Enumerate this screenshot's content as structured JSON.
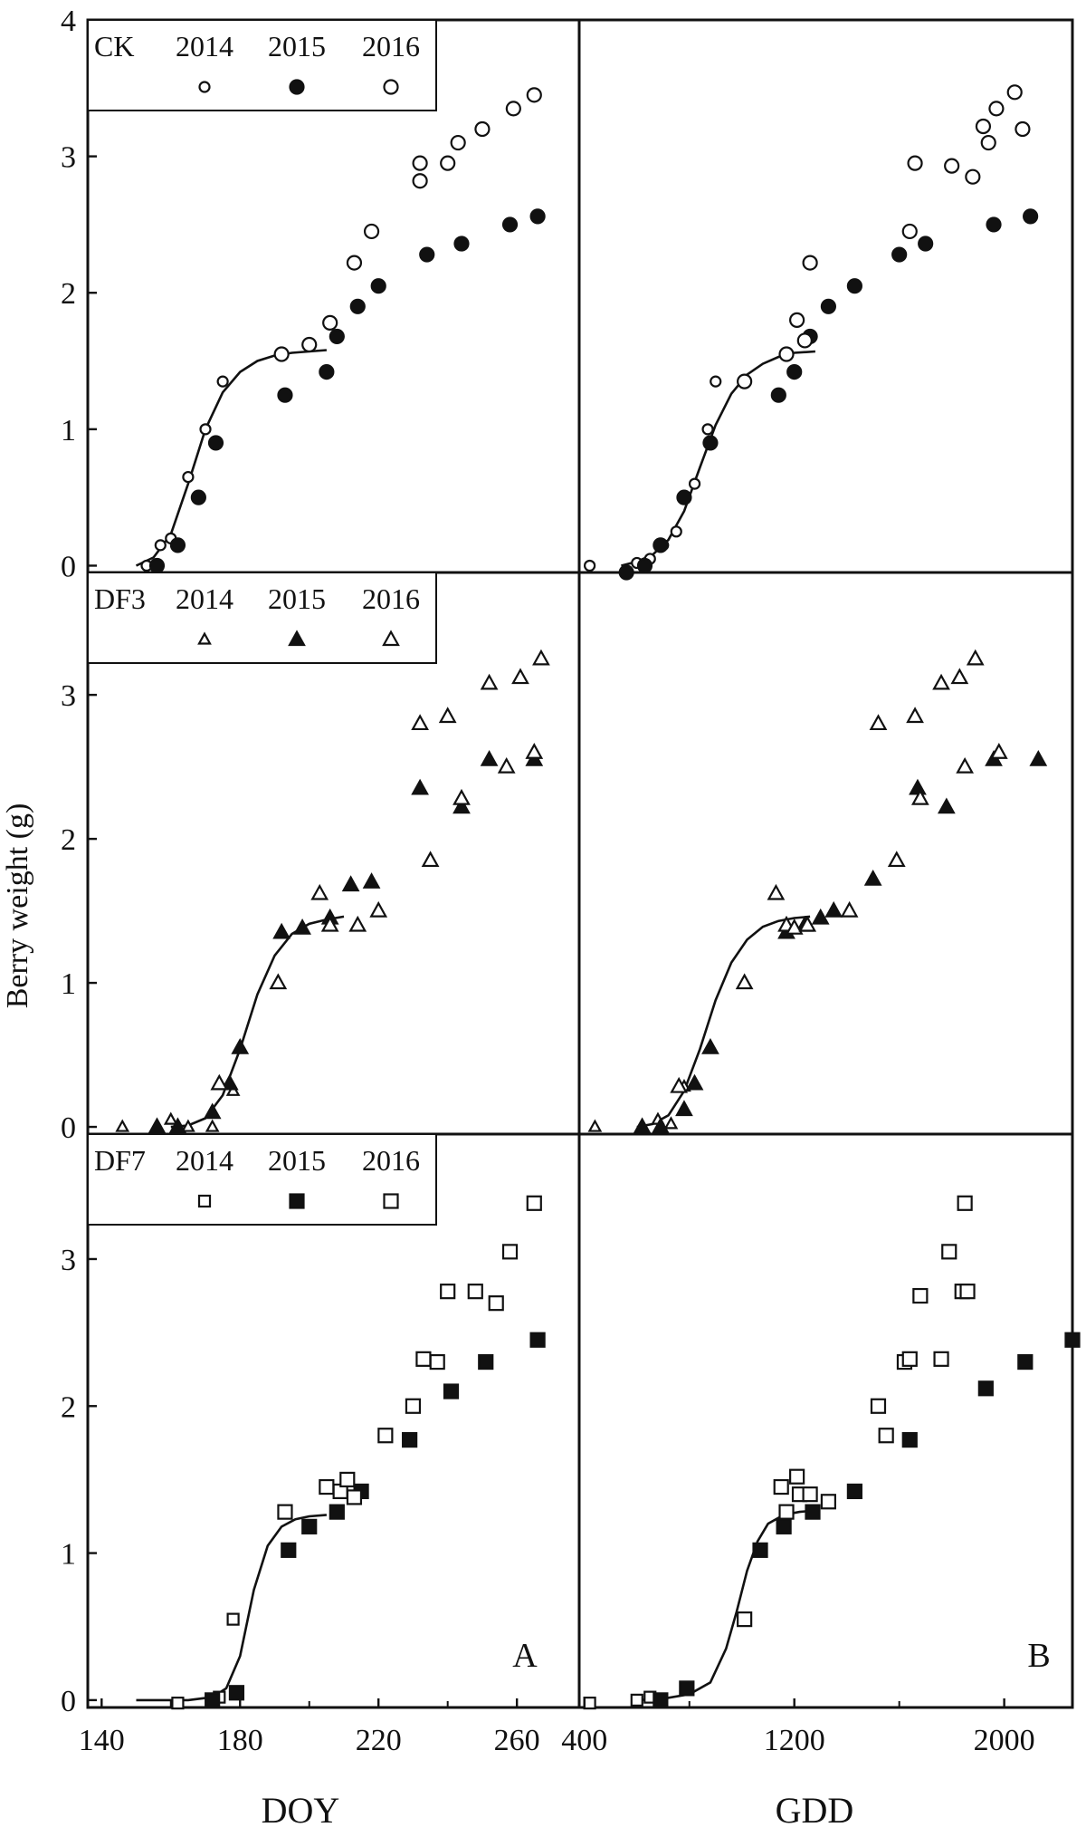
{
  "figure": {
    "ylabel": "Berry weight (g)",
    "panel_labels": [
      "A",
      "B"
    ],
    "columns": [
      {
        "xlabel": "DOY",
        "ticks": [
          140,
          180,
          220,
          260
        ],
        "xlim": [
          136,
          278
        ]
      },
      {
        "xlabel": "GDD",
        "ticks": [
          400,
          1200,
          2000
        ],
        "xlim": [
          380,
          2260
        ]
      }
    ],
    "rows": [
      {
        "treatment": "CK",
        "yticks": [
          0,
          1,
          2,
          3,
          4
        ],
        "ylim": [
          -0.05,
          4.0
        ]
      },
      {
        "treatment": "DF3",
        "yticks": [
          0,
          1,
          2,
          3
        ],
        "ylim": [
          -0.05,
          3.85
        ]
      },
      {
        "treatment": "DF7",
        "yticks": [
          0,
          1,
          2,
          3
        ],
        "ylim": [
          -0.05,
          3.85
        ]
      }
    ],
    "legend_years": [
      "2014",
      "2015",
      "2016"
    ]
  },
  "chart_data": [
    {
      "type": "scatter",
      "panel": "CK-DOY",
      "treatment": "CK",
      "xlabel": "DOY",
      "ylabel": "Berry weight (g)",
      "xlim": [
        136,
        278
      ],
      "ylim": [
        -0.05,
        4.0
      ],
      "legend": {
        "position": "top-left",
        "entries": [
          "CK",
          "2014",
          "2015",
          "2016"
        ]
      },
      "series": [
        {
          "name": "2014",
          "marker": "circle-open-small",
          "x": [
            153,
            157,
            160,
            165,
            170,
            175
          ],
          "y": [
            0.0,
            0.15,
            0.2,
            0.65,
            1.0,
            1.35
          ]
        },
        {
          "name": "2015",
          "marker": "circle-filled",
          "x": [
            156,
            162,
            168,
            173,
            193,
            205,
            208,
            214,
            220,
            234,
            244,
            258,
            266
          ],
          "y": [
            0.0,
            0.15,
            0.5,
            0.9,
            1.25,
            1.42,
            1.68,
            1.9,
            2.05,
            2.28,
            2.36,
            2.5,
            2.56
          ]
        },
        {
          "name": "2016",
          "marker": "circle-open",
          "x": [
            192,
            200,
            206,
            213,
            218,
            232,
            232,
            240,
            243,
            250,
            259,
            265
          ],
          "y": [
            1.55,
            1.62,
            1.78,
            2.22,
            2.45,
            2.82,
            2.95,
            2.95,
            3.1,
            3.2,
            3.35,
            3.45
          ]
        }
      ],
      "fit": {
        "x": [
          150,
          155,
          160,
          165,
          170,
          175,
          180,
          185,
          190,
          195,
          200,
          205
        ],
        "y": [
          0.0,
          0.06,
          0.23,
          0.6,
          1.0,
          1.27,
          1.42,
          1.5,
          1.54,
          1.56,
          1.57,
          1.58
        ]
      }
    },
    {
      "type": "scatter",
      "panel": "CK-GDD",
      "treatment": "CK",
      "xlabel": "GDD",
      "ylabel": "Berry weight (g)",
      "xlim": [
        380,
        2260
      ],
      "ylim": [
        -0.05,
        4.0
      ],
      "series": [
        {
          "name": "2014",
          "marker": "circle-open-small",
          "x": [
            420,
            600,
            650,
            700,
            750,
            820,
            870,
            900
          ],
          "y": [
            0.0,
            0.02,
            0.05,
            0.15,
            0.25,
            0.6,
            1.0,
            1.35
          ]
        },
        {
          "name": "2015",
          "marker": "circle-filled",
          "x": [
            560,
            630,
            690,
            780,
            880,
            1140,
            1200,
            1260,
            1330,
            1430,
            1600,
            1700,
            1960,
            2100
          ],
          "y": [
            -0.05,
            0.0,
            0.15,
            0.5,
            0.9,
            1.25,
            1.42,
            1.68,
            1.9,
            2.05,
            2.28,
            2.36,
            2.5,
            2.56
          ]
        },
        {
          "name": "2016",
          "marker": "circle-open",
          "x": [
            1010,
            1170,
            1210,
            1240,
            1260,
            1640,
            1660,
            1800,
            1880,
            1920,
            1940,
            1970,
            2040,
            2070
          ],
          "y": [
            1.35,
            1.55,
            1.8,
            1.65,
            2.22,
            2.45,
            2.95,
            2.93,
            2.85,
            3.22,
            3.1,
            3.35,
            3.47,
            3.2
          ]
        }
      ],
      "fit": {
        "x": [
          540,
          600,
          660,
          720,
          780,
          840,
          900,
          960,
          1020,
          1080,
          1140,
          1200,
          1280
        ],
        "y": [
          0.0,
          0.03,
          0.08,
          0.19,
          0.4,
          0.72,
          1.03,
          1.26,
          1.4,
          1.48,
          1.53,
          1.56,
          1.57
        ]
      }
    },
    {
      "type": "scatter",
      "panel": "DF3-DOY",
      "treatment": "DF3",
      "xlabel": "DOY",
      "ylabel": "Berry weight (g)",
      "xlim": [
        136,
        278
      ],
      "ylim": [
        -0.05,
        3.85
      ],
      "legend": {
        "position": "top-left",
        "entries": [
          "DF3",
          "2014",
          "2015",
          "2016"
        ]
      },
      "series": [
        {
          "name": "2014",
          "marker": "triangle-open-small",
          "x": [
            146,
            160,
            165,
            172,
            178
          ],
          "y": [
            0.0,
            0.05,
            0.0,
            0.0,
            0.25
          ]
        },
        {
          "name": "2015",
          "marker": "triangle-filled",
          "x": [
            156,
            162,
            172,
            177,
            180,
            192,
            198,
            206,
            212,
            218,
            232,
            244,
            252,
            265
          ],
          "y": [
            0.0,
            0.0,
            0.1,
            0.3,
            0.55,
            1.35,
            1.38,
            1.45,
            1.68,
            1.7,
            2.35,
            2.22,
            2.55,
            2.55
          ]
        },
        {
          "name": "2016",
          "marker": "triangle-open",
          "x": [
            174,
            191,
            203,
            206,
            214,
            220,
            232,
            235,
            240,
            244,
            252,
            257,
            261,
            265,
            267
          ],
          "y": [
            0.3,
            1.0,
            1.62,
            1.4,
            1.4,
            1.5,
            2.8,
            1.85,
            2.85,
            2.28,
            3.08,
            2.5,
            3.12,
            2.6,
            3.25
          ]
        }
      ],
      "fit": {
        "x": [
          160,
          165,
          170,
          175,
          180,
          185,
          190,
          195,
          200,
          205,
          210
        ],
        "y": [
          0.0,
          0.01,
          0.06,
          0.22,
          0.54,
          0.92,
          1.19,
          1.34,
          1.41,
          1.44,
          1.46
        ]
      }
    },
    {
      "type": "scatter",
      "panel": "DF3-GDD",
      "treatment": "DF3",
      "xlabel": "GDD",
      "ylabel": "Berry weight (g)",
      "xlim": [
        380,
        2260
      ],
      "ylim": [
        -0.05,
        3.85
      ],
      "series": [
        {
          "name": "2014",
          "marker": "triangle-open-small",
          "x": [
            440,
            620,
            680,
            730,
            780
          ],
          "y": [
            0.0,
            0.0,
            0.05,
            0.02,
            0.28
          ]
        },
        {
          "name": "2015",
          "marker": "triangle-filled",
          "x": [
            620,
            690,
            780,
            820,
            880,
            1170,
            1240,
            1300,
            1350,
            1500,
            1670,
            1780,
            1960,
            2130
          ],
          "y": [
            0.0,
            0.0,
            0.12,
            0.3,
            0.55,
            1.35,
            1.4,
            1.45,
            1.5,
            1.72,
            2.35,
            2.22,
            2.55,
            2.55
          ]
        },
        {
          "name": "2016",
          "marker": "triangle-open",
          "x": [
            760,
            1010,
            1130,
            1170,
            1200,
            1250,
            1410,
            1520,
            1590,
            1660,
            1680,
            1760,
            1830,
            1850,
            1890,
            1980
          ],
          "y": [
            0.28,
            1.0,
            1.62,
            1.4,
            1.38,
            1.4,
            1.5,
            2.8,
            1.85,
            2.85,
            2.28,
            3.08,
            3.12,
            2.5,
            3.25,
            2.6
          ]
        }
      ],
      "fit": {
        "x": [
          600,
          660,
          720,
          780,
          840,
          900,
          960,
          1020,
          1080,
          1140,
          1200,
          1260
        ],
        "y": [
          0.0,
          0.02,
          0.08,
          0.25,
          0.54,
          0.88,
          1.14,
          1.3,
          1.39,
          1.43,
          1.45,
          1.46
        ]
      }
    },
    {
      "type": "scatter",
      "panel": "DF7-DOY",
      "treatment": "DF7",
      "xlabel": "DOY",
      "ylabel": "Berry weight (g)",
      "xlim": [
        136,
        278
      ],
      "ylim": [
        -0.05,
        3.85
      ],
      "legend": {
        "position": "top-left",
        "entries": [
          "DF7",
          "2014",
          "2015",
          "2016"
        ]
      },
      "series": [
        {
          "name": "2014",
          "marker": "square-open-small",
          "x": [
            162,
            174,
            178
          ],
          "y": [
            -0.02,
            0.02,
            0.55
          ]
        },
        {
          "name": "2015",
          "marker": "square-filled",
          "x": [
            172,
            179,
            194,
            200,
            208,
            215,
            229,
            241,
            251,
            266
          ],
          "y": [
            0.0,
            0.05,
            1.02,
            1.18,
            1.28,
            1.42,
            1.77,
            2.1,
            2.3,
            2.45
          ]
        },
        {
          "name": "2016",
          "marker": "square-open",
          "x": [
            193,
            205,
            209,
            211,
            213,
            222,
            230,
            233,
            237,
            240,
            248,
            254,
            258,
            265
          ],
          "y": [
            1.28,
            1.45,
            1.42,
            1.5,
            1.38,
            1.8,
            2.0,
            2.32,
            2.3,
            2.78,
            2.78,
            2.7,
            3.05,
            3.38
          ]
        }
      ],
      "fit": {
        "x": [
          150,
          165,
          172,
          176,
          180,
          184,
          188,
          192,
          196,
          200,
          205
        ],
        "y": [
          0.0,
          0.0,
          0.02,
          0.08,
          0.3,
          0.75,
          1.05,
          1.18,
          1.23,
          1.25,
          1.26
        ]
      }
    },
    {
      "type": "scatter",
      "panel": "DF7-GDD",
      "treatment": "DF7",
      "xlabel": "GDD",
      "ylabel": "Berry weight (g)",
      "xlim": [
        380,
        2260
      ],
      "ylim": [
        -0.05,
        3.85
      ],
      "series": [
        {
          "name": "2014",
          "marker": "square-open-small",
          "x": [
            420,
            600,
            650
          ],
          "y": [
            -0.02,
            0.0,
            0.02
          ]
        },
        {
          "name": "2015",
          "marker": "square-filled",
          "x": [
            690,
            790,
            1070,
            1160,
            1270,
            1430,
            1640,
            1930,
            2080,
            2260
          ],
          "y": [
            0.0,
            0.08,
            1.02,
            1.18,
            1.28,
            1.42,
            1.77,
            2.12,
            2.3,
            2.45
          ]
        },
        {
          "name": "2016",
          "marker": "square-open",
          "x": [
            1010,
            1150,
            1170,
            1210,
            1220,
            1260,
            1330,
            1520,
            1550,
            1620,
            1640,
            1680,
            1760,
            1790,
            1840,
            1850,
            1860
          ],
          "y": [
            0.55,
            1.45,
            1.28,
            1.52,
            1.4,
            1.4,
            1.35,
            2.0,
            1.8,
            2.3,
            2.32,
            2.75,
            2.32,
            3.05,
            2.78,
            3.38,
            2.78
          ]
        }
      ],
      "fit": {
        "x": [
          600,
          700,
          800,
          880,
          940,
          980,
          1020,
          1060,
          1100,
          1160,
          1220,
          1280
        ],
        "y": [
          0.0,
          0.01,
          0.04,
          0.12,
          0.35,
          0.6,
          0.88,
          1.08,
          1.2,
          1.26,
          1.28,
          1.29
        ]
      }
    }
  ]
}
